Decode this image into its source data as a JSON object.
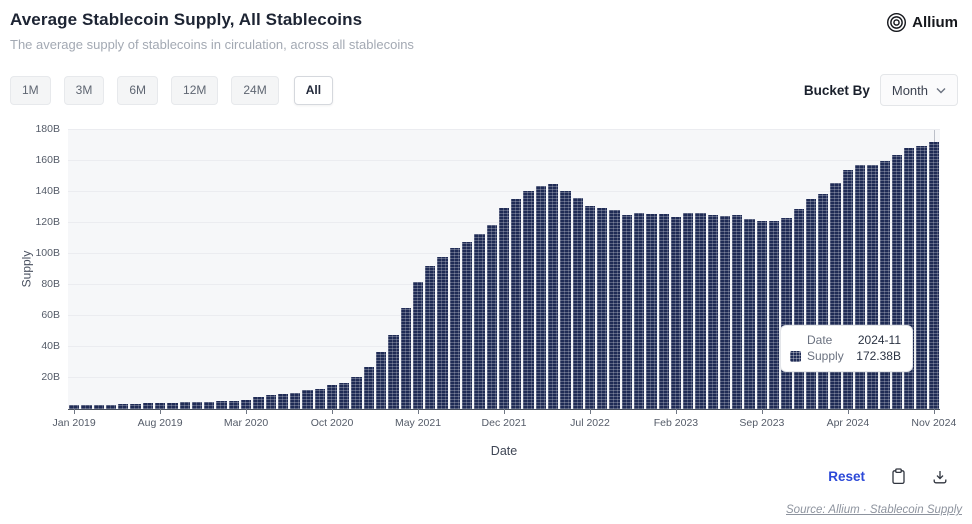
{
  "header": {
    "title": "Average Stablecoin Supply, All Stablecoins",
    "subtitle": "The average supply of stablecoins in circulation, across all stablecoins",
    "brand": "Allium"
  },
  "controls": {
    "range_buttons": [
      {
        "label": "1M",
        "active": false
      },
      {
        "label": "3M",
        "active": false
      },
      {
        "label": "6M",
        "active": false
      },
      {
        "label": "12M",
        "active": false
      },
      {
        "label": "24M",
        "active": false
      },
      {
        "label": "All",
        "active": true
      }
    ],
    "bucket_by_label": "Bucket By",
    "bucket_value": "Month"
  },
  "chart_data": {
    "type": "bar",
    "title": "Average Stablecoin Supply, All Stablecoins",
    "xlabel": "Date",
    "ylabel": "Supply",
    "ylim": [
      0,
      180
    ],
    "unit": "B",
    "grid": true,
    "bar_color": "#1f2b55",
    "y_ticks": [
      "20B",
      "40B",
      "60B",
      "80B",
      "100B",
      "120B",
      "140B",
      "160B",
      "180B"
    ],
    "x_tick_labels": [
      "Jan 2019",
      "Aug 2019",
      "Mar 2020",
      "Oct 2020",
      "May 2021",
      "Dec 2021",
      "Jul 2022",
      "Feb 2023",
      "Sep 2023",
      "Apr 2024",
      "Nov 2024"
    ],
    "x_tick_every": 7,
    "categories": [
      "2019-01",
      "2019-02",
      "2019-03",
      "2019-04",
      "2019-05",
      "2019-06",
      "2019-07",
      "2019-08",
      "2019-09",
      "2019-10",
      "2019-11",
      "2019-12",
      "2020-01",
      "2020-02",
      "2020-03",
      "2020-04",
      "2020-05",
      "2020-06",
      "2020-07",
      "2020-08",
      "2020-09",
      "2020-10",
      "2020-11",
      "2020-12",
      "2021-01",
      "2021-02",
      "2021-03",
      "2021-04",
      "2021-05",
      "2021-06",
      "2021-07",
      "2021-08",
      "2021-09",
      "2021-10",
      "2021-11",
      "2021-12",
      "2022-01",
      "2022-02",
      "2022-03",
      "2022-04",
      "2022-05",
      "2022-06",
      "2022-07",
      "2022-08",
      "2022-09",
      "2022-10",
      "2022-11",
      "2022-12",
      "2023-01",
      "2023-02",
      "2023-03",
      "2023-04",
      "2023-05",
      "2023-06",
      "2023-07",
      "2023-08",
      "2023-09",
      "2023-10",
      "2023-11",
      "2023-12",
      "2024-01",
      "2024-02",
      "2024-03",
      "2024-04",
      "2024-05",
      "2024-06",
      "2024-07",
      "2024-08",
      "2024-09",
      "2024-10",
      "2024-11"
    ],
    "values": [
      2.5,
      2.5,
      2.6,
      2.8,
      3.1,
      3.5,
      3.9,
      4.1,
      4.2,
      4.4,
      4.6,
      4.8,
      5.1,
      5.4,
      5.7,
      7.7,
      8.8,
      9.9,
      10.5,
      12.0,
      13.1,
      15.2,
      17.0,
      20.6,
      27.0,
      37.0,
      48.0,
      65.0,
      82.0,
      92.0,
      98.0,
      104.0,
      108.0,
      113.0,
      119.0,
      130.0,
      135.2,
      140.6,
      144.2,
      144.9,
      140.6,
      136.3,
      131.0,
      129.9,
      128.4,
      124.9,
      126.2,
      125.6,
      125.6,
      124.1,
      126.2,
      126.2,
      124.9,
      124.5,
      125.1,
      122.4,
      121.3,
      121.3,
      123.4,
      129.2,
      135.2,
      138.4,
      146.0,
      153.9,
      157.7,
      157.7,
      159.9,
      164.1,
      168.4,
      169.5,
      172.38
    ],
    "hovered_index": 70
  },
  "tooltip": {
    "date_label": "Date",
    "date_value": "2024-11",
    "supply_label": "Supply",
    "supply_value": "172.38B"
  },
  "footer": {
    "reset_label": "Reset",
    "source": "Source: Allium · Stablecoin Supply"
  },
  "colors": {
    "bar": "#1f2b55",
    "accent_blue": "#2c49d8",
    "grid": "#ebecf0",
    "plot_bg": "#f6f7f9"
  }
}
